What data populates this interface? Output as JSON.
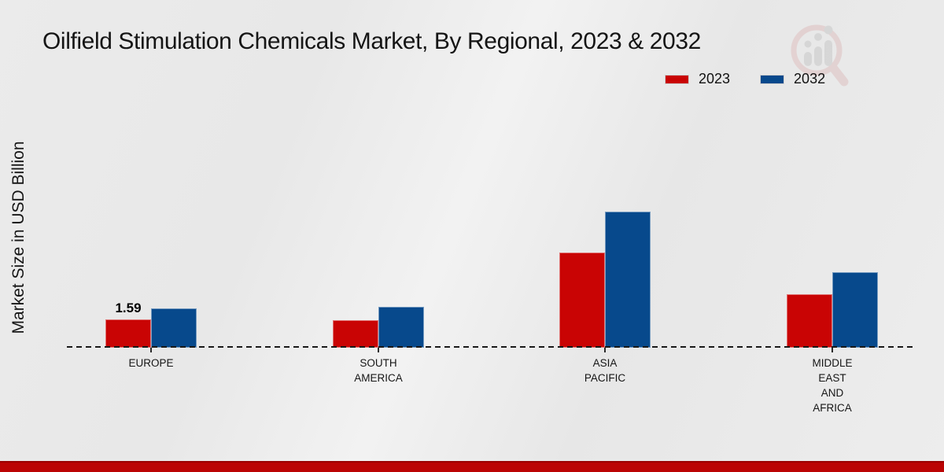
{
  "chart_data": {
    "type": "bar",
    "title": "Oilfield Stimulation Chemicals Market, By Regional, 2023 & 2032",
    "ylabel": "Market Size in USD Billion",
    "xlabel": "",
    "unit": "USD Billion",
    "categories": [
      "EUROPE",
      "SOUTH AMERICA",
      "ASIA PACIFIC",
      "MIDDLE EAST AND AFRICA"
    ],
    "category_label_lines": [
      [
        "EUROPE"
      ],
      [
        "SOUTH",
        "AMERICA"
      ],
      [
        "ASIA",
        "PACIFIC"
      ],
      [
        "MIDDLE",
        "EAST",
        "AND",
        "AFRICA"
      ]
    ],
    "series": [
      {
        "name": "2023",
        "color": "#c90404",
        "values": [
          1.59,
          1.52,
          5.3,
          3.0
        ]
      },
      {
        "name": "2032",
        "color": "#07498c",
        "values": [
          2.2,
          2.3,
          7.6,
          4.2
        ]
      }
    ],
    "data_labels": [
      {
        "category_index": 0,
        "series_index": 0,
        "text": "1.59"
      }
    ],
    "ylim": [
      0,
      8
    ],
    "grid": false,
    "legend_position": "top-right",
    "baseline_style": "dashed"
  },
  "footer": {
    "accent_color": "#bb0404"
  },
  "watermark": {
    "icon": "magnifier-growth-chart-logo"
  }
}
